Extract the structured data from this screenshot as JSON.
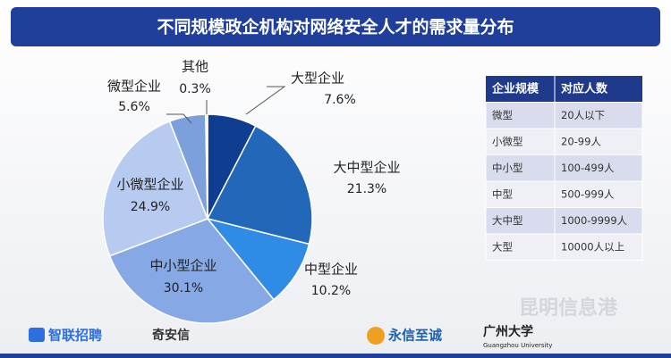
{
  "chart_data": {
    "type": "pie",
    "title": "不同规模政企机构对网络安全人才的需求量分布",
    "categories": [
      "大型企业",
      "大中型企业",
      "中型企业",
      "中小型企业",
      "小微型企业",
      "微型企业",
      "其他"
    ],
    "values": [
      7.6,
      21.3,
      10.2,
      30.1,
      24.9,
      5.6,
      0.3
    ],
    "value_labels": [
      "7.6%",
      "21.3%",
      "10.2%",
      "30.1%",
      "24.9%",
      "5.6%",
      "0.3%"
    ],
    "colors": [
      "#0f3d8f",
      "#2368b8",
      "#2f8be3",
      "#86a9e6",
      "#b7caf0",
      "#7ca0dc",
      "#dfe7f7"
    ]
  },
  "table": {
    "header": [
      "企业规模",
      "对应人数"
    ],
    "rows": [
      [
        "微型",
        "20人以下"
      ],
      [
        "小微型",
        "20-99人"
      ],
      [
        "中小型",
        "100-499人"
      ],
      [
        "中型",
        "500-999人"
      ],
      [
        "大中型",
        "1000-9999人"
      ],
      [
        "大型",
        "10000人以上"
      ]
    ]
  },
  "footer": {
    "logos": [
      "智联招聘",
      "奇安信",
      "永信至诚",
      "广州大学",
      "Guangzhou University"
    ],
    "watermark": "昆明信息港"
  }
}
